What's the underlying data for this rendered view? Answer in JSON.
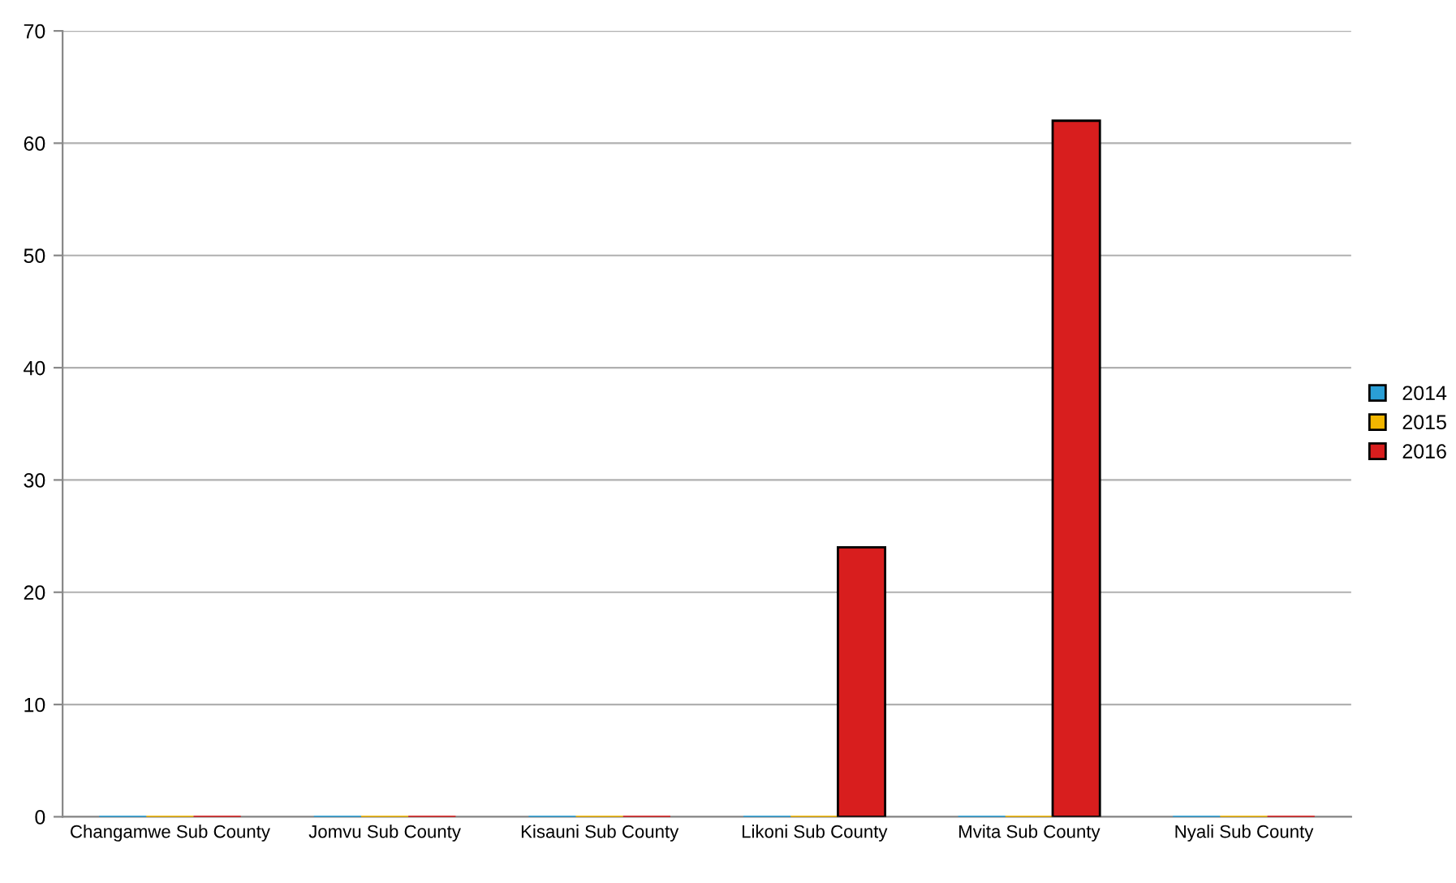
{
  "chart_data": {
    "type": "bar",
    "categories": [
      "Changamwe Sub County",
      "Jomvu Sub County",
      "Kisauni Sub County",
      "Likoni Sub County",
      "Mvita Sub County",
      "Nyali Sub County"
    ],
    "series": [
      {
        "name": "2014",
        "color": "#2a9fd6",
        "values": [
          0,
          0,
          0,
          0,
          0,
          0
        ]
      },
      {
        "name": "2015",
        "color": "#f2b600",
        "values": [
          0,
          0,
          0,
          0,
          0,
          0
        ]
      },
      {
        "name": "2016",
        "color": "#d81e1e",
        "values": [
          0,
          0,
          0,
          24,
          62,
          0
        ]
      }
    ],
    "ylim": [
      0,
      70
    ],
    "yticks": [
      0,
      10,
      20,
      30,
      40,
      50,
      60,
      70
    ],
    "grid": "y",
    "legend": "right"
  }
}
